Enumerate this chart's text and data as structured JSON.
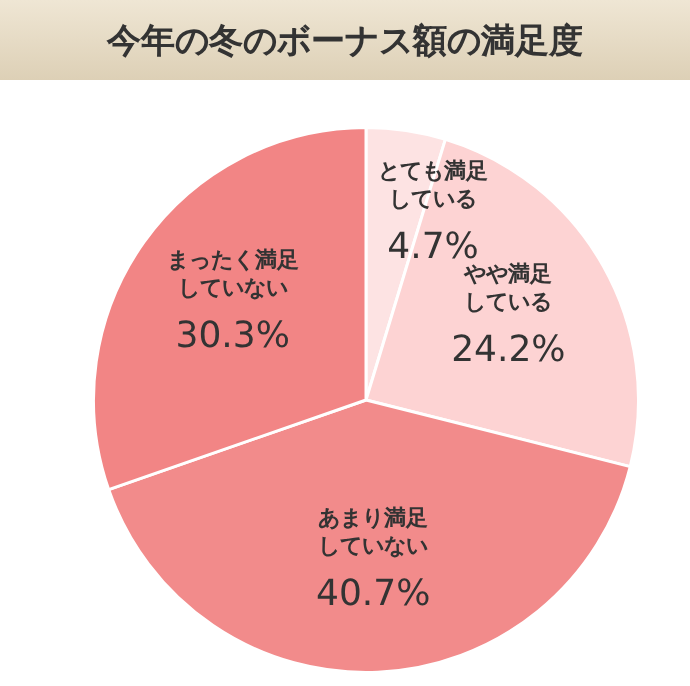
{
  "chart_data": {
    "type": "pie",
    "title": "今年の冬のボーナス額の満足度",
    "categories": [
      "とても満足している",
      "やや満足している",
      "あまり満足していない",
      "まったく満足していない"
    ],
    "values": [
      4.7,
      24.2,
      40.7,
      30.3
    ],
    "value_labels": [
      "4.7%",
      "24.2%",
      "40.7%",
      "30.3%"
    ],
    "colors": [
      "#fde3e3",
      "#fdd3d3",
      "#f28b8b",
      "#f28585"
    ],
    "data_labels": true,
    "legend": false
  }
}
